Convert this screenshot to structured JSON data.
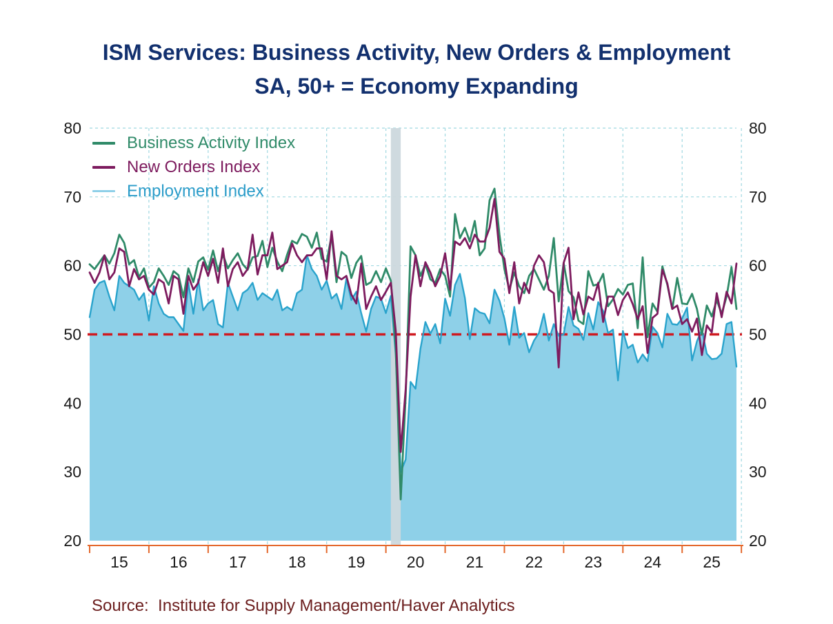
{
  "title": {
    "line1": "ISM Services: Business Activity, New Orders & Employment",
    "line2": "SA, 50+ = Economy Expanding"
  },
  "source": {
    "text": "Source:  Institute for Supply Management/Haver Analytics",
    "color": "#6b1d1d"
  },
  "chart_data": {
    "type": "line",
    "title": "ISM Services: Business Activity, New Orders & Employment",
    "subtitle": "SA, 50+ = Economy Expanding",
    "frequency": "monthly",
    "x_start": "2015-01",
    "x_end": "2025-12",
    "x_tick_labels": [
      "15",
      "16",
      "17",
      "18",
      "19",
      "20",
      "21",
      "22",
      "23",
      "24",
      "25"
    ],
    "y_ticks": [
      20,
      30,
      40,
      50,
      60,
      70,
      80
    ],
    "ylim": [
      20,
      80
    ],
    "grid": true,
    "grid_color": "#9ed7e0",
    "axis_color": "#e4682c",
    "legend_position": "top-left",
    "reference_line": {
      "value": 50,
      "style": "dashed",
      "color": "#cf1a20"
    },
    "recession_band": {
      "from": "2020-02",
      "to": "2020-04",
      "color": "#ccd8dd"
    },
    "series": [
      {
        "name": "Business Activity Index",
        "color": "#2f8a68",
        "type": "line",
        "values": [
          60.2,
          59.5,
          60.5,
          61.5,
          60.3,
          61.8,
          64.5,
          63.3,
          60.2,
          60.8,
          58.3,
          59.6,
          56.8,
          57.6,
          59.6,
          58.5,
          57.2,
          59.2,
          58.6,
          55.4,
          59.6,
          57.6,
          60.6,
          61.2,
          59.4,
          62.2,
          59.2,
          61.6,
          59.6,
          60.8,
          61.8,
          60.2,
          59.4,
          61.2,
          61.4,
          63.6,
          59.8,
          62.6,
          60.6,
          59.2,
          61.6,
          63.6,
          63.2,
          64.6,
          64.2,
          62.6,
          64.8,
          61.0,
          60.6,
          64.4,
          57.6,
          62.0,
          61.4,
          58.2,
          60.4,
          61.4,
          57.2,
          57.6,
          59.2,
          57.6,
          59.6,
          57.8,
          48.0,
          26.0,
          41.0,
          62.8,
          61.5,
          58.5,
          60.2,
          58.0,
          57.5,
          59.5,
          58.5,
          55.5,
          67.5,
          64.0,
          65.5,
          63.5,
          66.5,
          61.5,
          62.5,
          69.5,
          71.2,
          64.5,
          59.5,
          56.5,
          59.0,
          57.0,
          56.0,
          58.5,
          59.5,
          58.0,
          56.5,
          58.5,
          64.0,
          54.8,
          60.4,
          56.3,
          55.4,
          52.0,
          51.5,
          59.2,
          57.1,
          57.3,
          58.8,
          54.1,
          55.1,
          56.6,
          55.8,
          57.2,
          57.4,
          50.9,
          61.2,
          49.6,
          54.5,
          53.3,
          59.9,
          57.2,
          53.7,
          58.2,
          54.5,
          54.4,
          55.9,
          53.7,
          50.0,
          54.2,
          52.6,
          55.0,
          53.0,
          55.5,
          59.8,
          53.7
        ]
      },
      {
        "name": "New Orders Index",
        "color": "#7d1b5e",
        "type": "line",
        "values": [
          59.0,
          57.5,
          59.0,
          61.5,
          58.0,
          59.0,
          62.5,
          62.0,
          57.0,
          59.5,
          58.0,
          58.5,
          56.5,
          55.8,
          58.0,
          57.5,
          54.5,
          58.5,
          58.0,
          53.0,
          58.5,
          56.5,
          57.5,
          60.5,
          58.5,
          61.0,
          57.5,
          62.5,
          57.0,
          59.5,
          60.5,
          58.5,
          59.5,
          64.5,
          58.7,
          61.5,
          61.5,
          64.8,
          59.5,
          60.0,
          60.5,
          63.2,
          61.5,
          60.5,
          61.5,
          61.5,
          62.5,
          62.5,
          58.0,
          65.0,
          58.5,
          58.0,
          58.5,
          55.8,
          54.5,
          60.3,
          53.7,
          55.5,
          57.0,
          55.0,
          56.2,
          57.5,
          50.5,
          32.9,
          42.0,
          55.5,
          61.5,
          57.0,
          60.5,
          59.0,
          57.0,
          58.5,
          61.8,
          56.5,
          63.5,
          63.0,
          64.0,
          62.5,
          64.5,
          63.5,
          63.5,
          65.5,
          69.7,
          62.0,
          61.0,
          56.0,
          60.5,
          54.5,
          57.5,
          56.0,
          60.0,
          61.5,
          60.5,
          56.5,
          56.0,
          45.2,
          60.4,
          62.6,
          52.2,
          56.1,
          52.9,
          55.5,
          55.0,
          57.5,
          51.8,
          55.5,
          55.5,
          52.8,
          55.0,
          56.1,
          54.4,
          52.2,
          54.1,
          47.3,
          52.4,
          53.0,
          59.4,
          57.4,
          53.7,
          54.2,
          51.5,
          52.2,
          50.4,
          52.3,
          47.0,
          51.3,
          50.3,
          56.0,
          52.5,
          56.2,
          54.5,
          60.3
        ]
      },
      {
        "name": "Employment Index",
        "color": "#29a3cc",
        "fill_color": "#8ed0e8",
        "legend_text_color": "#2a9cc9",
        "type": "area",
        "values": [
          52.5,
          56.5,
          57.5,
          57.8,
          55.5,
          53.5,
          58.5,
          57.5,
          57.0,
          56.5,
          55.0,
          56.0,
          52.0,
          57.0,
          54.5,
          53.0,
          52.5,
          52.5,
          51.5,
          50.5,
          57.5,
          53.0,
          58.0,
          53.5,
          54.5,
          55.0,
          51.5,
          51.0,
          57.5,
          55.5,
          53.5,
          56.0,
          56.5,
          57.5,
          55.0,
          56.0,
          55.5,
          55.0,
          56.5,
          53.5,
          54.0,
          53.5,
          56.0,
          56.5,
          61.5,
          59.5,
          58.5,
          56.5,
          57.8,
          55.2,
          55.9,
          53.7,
          58.1,
          55.0,
          56.2,
          53.1,
          50.4,
          53.7,
          55.5,
          55.2,
          53.1,
          55.6,
          47.0,
          30.0,
          31.8,
          43.1,
          42.1,
          47.9,
          51.8,
          50.1,
          51.5,
          48.7,
          55.2,
          52.7,
          57.2,
          58.8,
          55.3,
          49.3,
          53.8,
          53.2,
          53.0,
          51.6,
          56.5,
          54.9,
          52.3,
          48.5,
          54.0,
          49.5,
          50.2,
          47.4,
          49.1,
          50.2,
          53.0,
          49.1,
          51.5,
          49.8,
          50.0,
          54.0,
          51.3,
          50.8,
          49.2,
          53.1,
          50.7,
          54.7,
          53.4,
          50.2,
          50.7,
          43.3,
          50.5,
          48.0,
          48.5,
          45.9,
          47.1,
          46.1,
          51.1,
          50.2,
          48.1,
          53.0,
          51.5,
          51.4,
          52.3,
          53.9,
          46.2,
          49.0,
          50.7,
          47.2,
          46.4,
          46.5,
          47.2,
          51.5,
          51.8,
          45.3
        ]
      }
    ]
  }
}
